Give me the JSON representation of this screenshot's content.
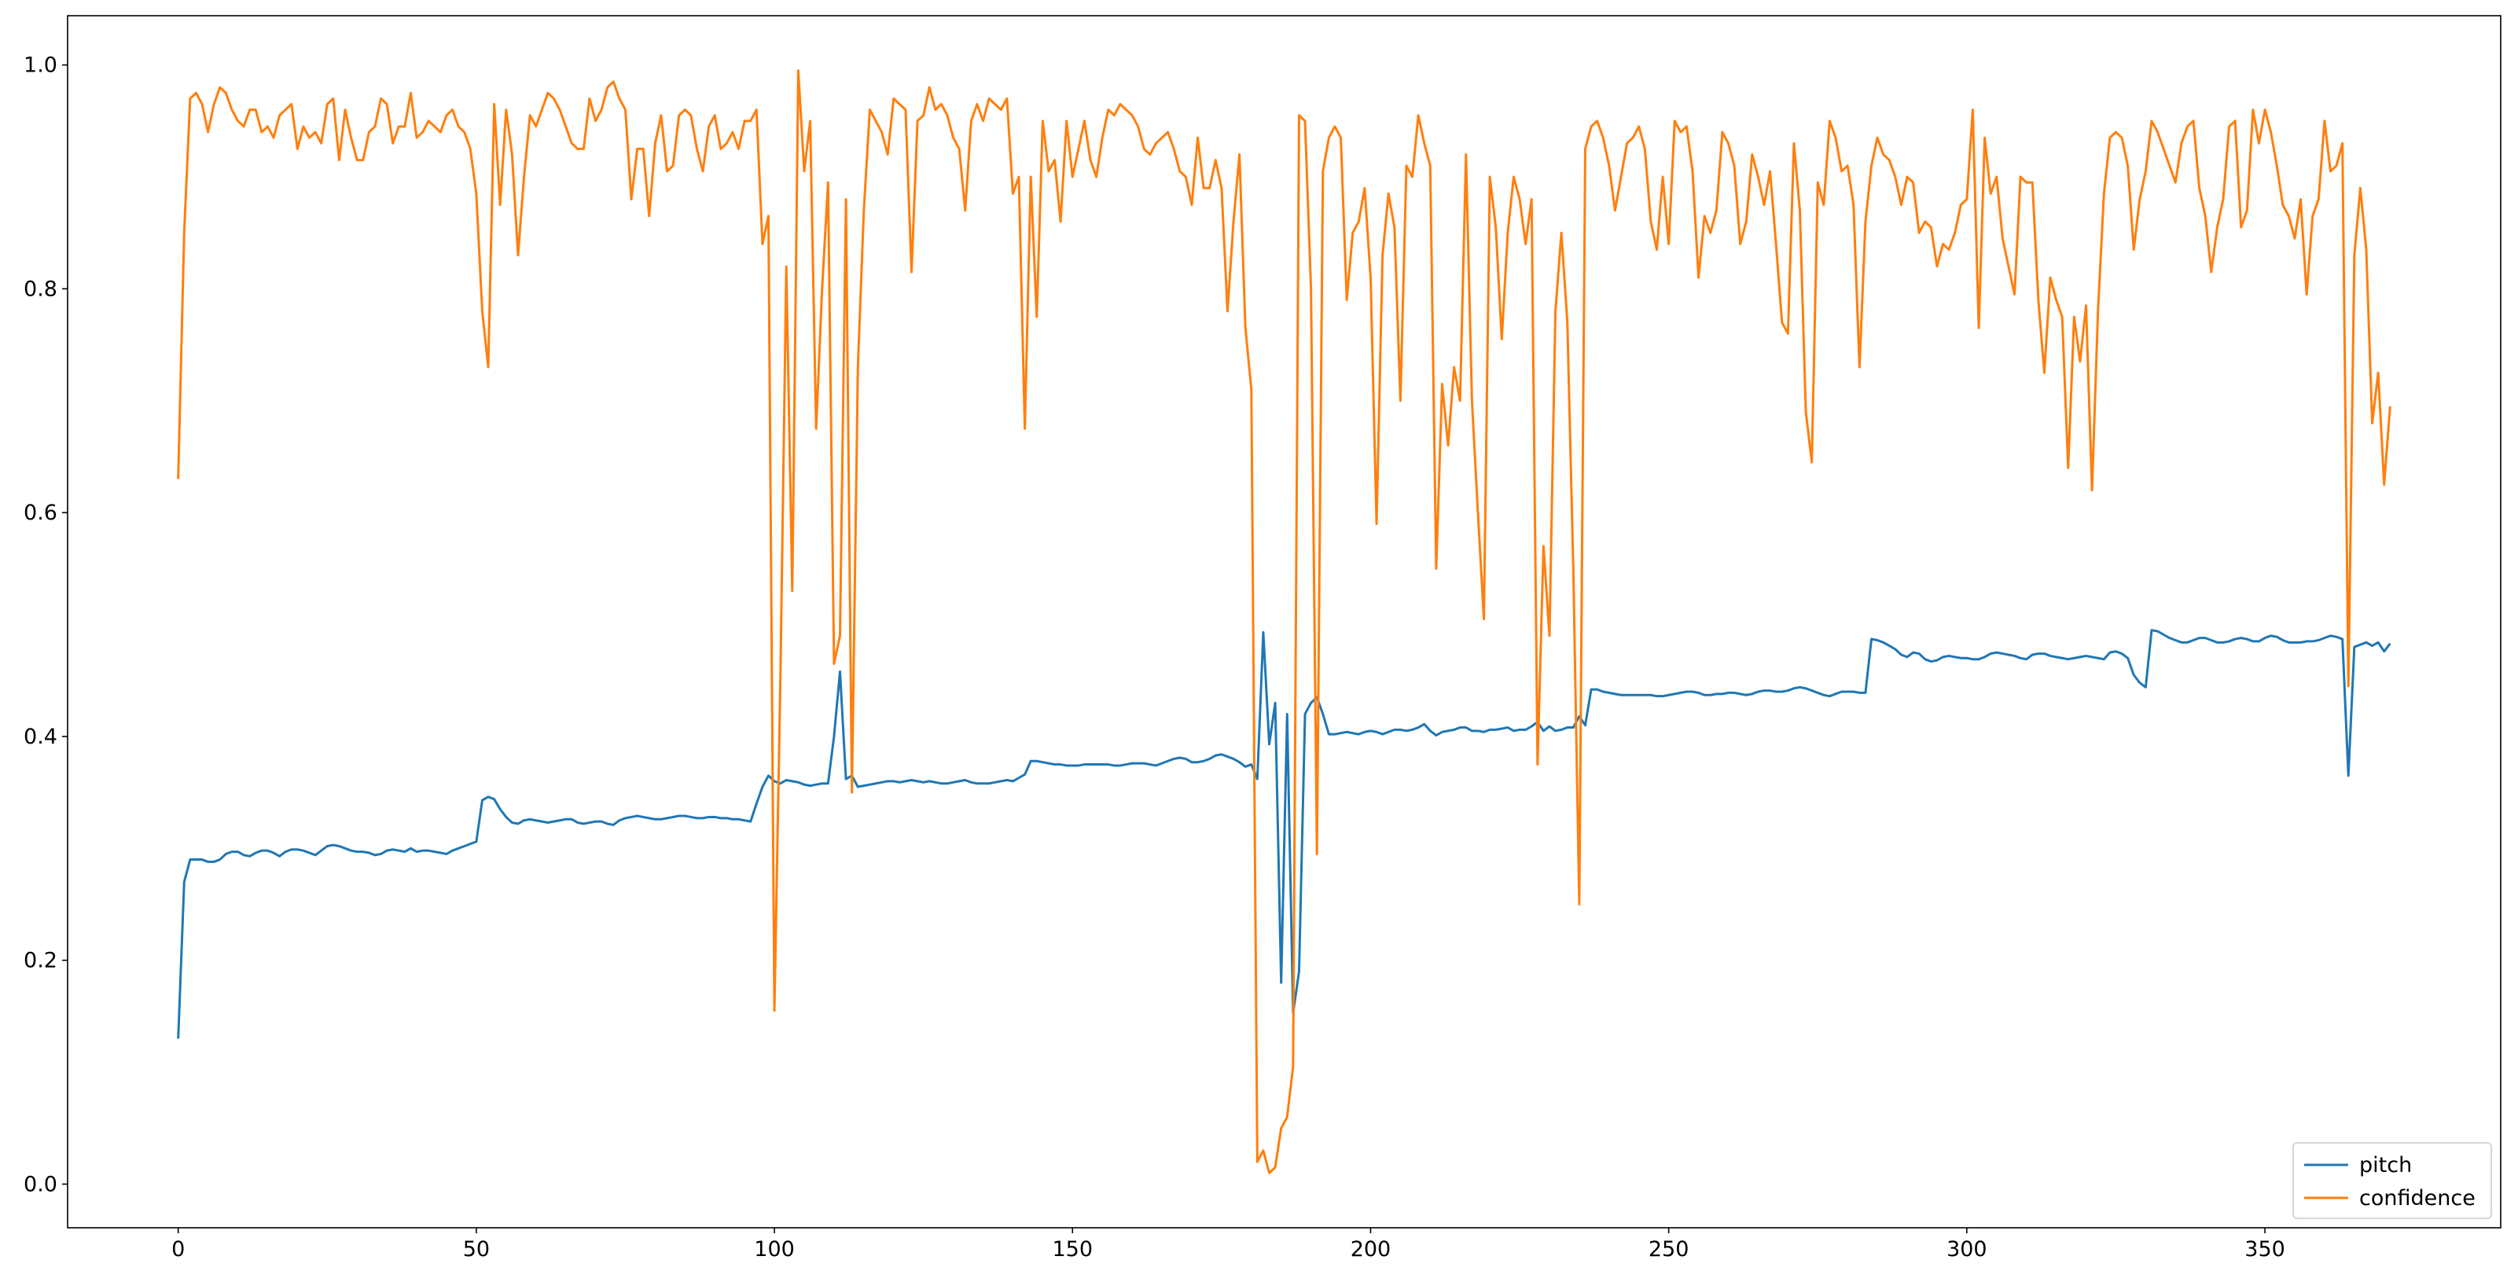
{
  "chart_data": {
    "type": "line",
    "x": [
      0,
      1,
      2,
      3,
      4,
      5,
      6,
      7,
      8,
      9,
      10,
      11,
      12,
      13,
      14,
      15,
      16,
      17,
      18,
      19,
      20,
      21,
      22,
      23,
      24,
      25,
      26,
      27,
      28,
      29,
      30,
      31,
      32,
      33,
      34,
      35,
      36,
      37,
      38,
      39,
      40,
      41,
      42,
      43,
      44,
      45,
      46,
      47,
      48,
      49,
      50,
      51,
      52,
      53,
      54,
      55,
      56,
      57,
      58,
      59,
      60,
      61,
      62,
      63,
      64,
      65,
      66,
      67,
      68,
      69,
      70,
      71,
      72,
      73,
      74,
      75,
      76,
      77,
      78,
      79,
      80,
      81,
      82,
      83,
      84,
      85,
      86,
      87,
      88,
      89,
      90,
      91,
      92,
      93,
      94,
      95,
      96,
      97,
      98,
      99,
      100,
      101,
      102,
      103,
      104,
      105,
      106,
      107,
      108,
      109,
      110,
      111,
      112,
      113,
      114,
      115,
      116,
      117,
      118,
      119,
      120,
      121,
      122,
      123,
      124,
      125,
      126,
      127,
      128,
      129,
      130,
      131,
      132,
      133,
      134,
      135,
      136,
      137,
      138,
      139,
      140,
      141,
      142,
      143,
      144,
      145,
      146,
      147,
      148,
      149,
      150,
      151,
      152,
      153,
      154,
      155,
      156,
      157,
      158,
      159,
      160,
      161,
      162,
      163,
      164,
      165,
      166,
      167,
      168,
      169,
      170,
      171,
      172,
      173,
      174,
      175,
      176,
      177,
      178,
      179,
      180,
      181,
      182,
      183,
      184,
      185,
      186,
      187,
      188,
      189,
      190,
      191,
      192,
      193,
      194,
      195,
      196,
      197,
      198,
      199,
      200,
      201,
      202,
      203,
      204,
      205,
      206,
      207,
      208,
      209,
      210,
      211,
      212,
      213,
      214,
      215,
      216,
      217,
      218,
      219,
      220,
      221,
      222,
      223,
      224,
      225,
      226,
      227,
      228,
      229,
      230,
      231,
      232,
      233,
      234,
      235,
      236,
      237,
      238,
      239,
      240,
      241,
      242,
      243,
      244,
      245,
      246,
      247,
      248,
      249,
      250,
      251,
      252,
      253,
      254,
      255,
      256,
      257,
      258,
      259,
      260,
      261,
      262,
      263,
      264,
      265,
      266,
      267,
      268,
      269,
      270,
      271,
      272,
      273,
      274,
      275,
      276,
      277,
      278,
      279,
      280,
      281,
      282,
      283,
      284,
      285,
      286,
      287,
      288,
      289,
      290,
      291,
      292,
      293,
      294,
      295,
      296,
      297,
      298,
      299,
      300,
      301,
      302,
      303,
      304,
      305,
      306,
      307,
      308,
      309,
      310,
      311,
      312,
      313,
      314,
      315,
      316,
      317,
      318,
      319,
      320,
      321,
      322,
      323,
      324,
      325,
      326,
      327,
      328,
      329,
      330,
      331,
      332,
      333,
      334,
      335,
      336,
      337,
      338,
      339,
      340,
      341,
      342,
      343,
      344,
      345,
      346,
      347,
      348,
      349,
      350,
      351,
      352,
      353,
      354,
      355,
      356,
      357,
      358,
      359,
      360,
      361,
      362,
      363,
      364,
      365,
      366,
      367,
      368,
      369,
      370,
      371
    ],
    "series": [
      {
        "name": "pitch",
        "color": "#1f77b4",
        "values": [
          0.13,
          0.27,
          0.29,
          0.29,
          0.29,
          0.288,
          0.288,
          0.29,
          0.295,
          0.297,
          0.297,
          0.294,
          0.293,
          0.296,
          0.298,
          0.298,
          0.296,
          0.293,
          0.297,
          0.299,
          0.299,
          0.298,
          0.296,
          0.294,
          0.298,
          0.302,
          0.303,
          0.302,
          0.3,
          0.298,
          0.297,
          0.297,
          0.296,
          0.294,
          0.295,
          0.298,
          0.299,
          0.298,
          0.297,
          0.3,
          0.297,
          0.298,
          0.298,
          0.297,
          0.296,
          0.295,
          0.298,
          0.3,
          0.302,
          0.304,
          0.306,
          0.343,
          0.346,
          0.344,
          0.335,
          0.328,
          0.323,
          0.322,
          0.325,
          0.326,
          0.325,
          0.324,
          0.323,
          0.324,
          0.325,
          0.326,
          0.326,
          0.323,
          0.322,
          0.323,
          0.324,
          0.324,
          0.322,
          0.321,
          0.325,
          0.327,
          0.328,
          0.329,
          0.328,
          0.327,
          0.326,
          0.326,
          0.327,
          0.328,
          0.329,
          0.329,
          0.328,
          0.327,
          0.327,
          0.328,
          0.328,
          0.327,
          0.327,
          0.326,
          0.326,
          0.325,
          0.324,
          0.34,
          0.355,
          0.365,
          0.36,
          0.358,
          0.361,
          0.36,
          0.359,
          0.357,
          0.356,
          0.357,
          0.358,
          0.358,
          0.4,
          0.458,
          0.362,
          0.365,
          0.355,
          0.356,
          0.357,
          0.358,
          0.359,
          0.36,
          0.36,
          0.359,
          0.36,
          0.361,
          0.36,
          0.359,
          0.36,
          0.359,
          0.358,
          0.358,
          0.359,
          0.36,
          0.361,
          0.359,
          0.358,
          0.358,
          0.358,
          0.359,
          0.36,
          0.361,
          0.36,
          0.363,
          0.366,
          0.378,
          0.378,
          0.377,
          0.376,
          0.375,
          0.375,
          0.374,
          0.374,
          0.374,
          0.375,
          0.375,
          0.375,
          0.375,
          0.375,
          0.374,
          0.374,
          0.375,
          0.376,
          0.376,
          0.376,
          0.375,
          0.374,
          0.376,
          0.378,
          0.38,
          0.381,
          0.38,
          0.377,
          0.377,
          0.378,
          0.38,
          0.383,
          0.384,
          0.382,
          0.38,
          0.377,
          0.373,
          0.375,
          0.362,
          0.493,
          0.393,
          0.43,
          0.18,
          0.42,
          0.153,
          0.19,
          0.42,
          0.43,
          0.435,
          0.42,
          0.402,
          0.402,
          0.403,
          0.404,
          0.403,
          0.402,
          0.404,
          0.405,
          0.404,
          0.402,
          0.404,
          0.406,
          0.406,
          0.405,
          0.406,
          0.408,
          0.411,
          0.405,
          0.401,
          0.404,
          0.405,
          0.406,
          0.408,
          0.408,
          0.405,
          0.405,
          0.404,
          0.406,
          0.406,
          0.407,
          0.408,
          0.405,
          0.406,
          0.406,
          0.409,
          0.413,
          0.405,
          0.409,
          0.405,
          0.406,
          0.408,
          0.408,
          0.418,
          0.41,
          0.442,
          0.442,
          0.44,
          0.439,
          0.438,
          0.437,
          0.437,
          0.437,
          0.437,
          0.437,
          0.437,
          0.436,
          0.436,
          0.437,
          0.438,
          0.439,
          0.44,
          0.44,
          0.439,
          0.437,
          0.437,
          0.438,
          0.438,
          0.439,
          0.439,
          0.438,
          0.437,
          0.438,
          0.44,
          0.441,
          0.441,
          0.44,
          0.44,
          0.441,
          0.443,
          0.444,
          0.443,
          0.441,
          0.439,
          0.437,
          0.436,
          0.438,
          0.44,
          0.44,
          0.44,
          0.439,
          0.439,
          0.487,
          0.486,
          0.484,
          0.481,
          0.478,
          0.473,
          0.471,
          0.475,
          0.474,
          0.469,
          0.467,
          0.468,
          0.471,
          0.472,
          0.471,
          0.47,
          0.47,
          0.469,
          0.469,
          0.471,
          0.474,
          0.475,
          0.474,
          0.473,
          0.472,
          0.47,
          0.469,
          0.473,
          0.474,
          0.474,
          0.472,
          0.471,
          0.47,
          0.469,
          0.47,
          0.471,
          0.472,
          0.471,
          0.47,
          0.469,
          0.475,
          0.476,
          0.474,
          0.47,
          0.455,
          0.448,
          0.444,
          0.495,
          0.494,
          0.491,
          0.488,
          0.486,
          0.484,
          0.484,
          0.486,
          0.488,
          0.488,
          0.486,
          0.484,
          0.484,
          0.485,
          0.487,
          0.488,
          0.487,
          0.485,
          0.485,
          0.488,
          0.49,
          0.489,
          0.486,
          0.484,
          0.484,
          0.484,
          0.485,
          0.485,
          0.486,
          0.488,
          0.49,
          0.489,
          0.487,
          0.365,
          0.48,
          0.482,
          0.484,
          0.481,
          0.484,
          0.476,
          0.483
        ]
      },
      {
        "name": "confidence",
        "color": "#ff7f0e",
        "values": [
          0.63,
          0.85,
          0.97,
          0.975,
          0.965,
          0.94,
          0.965,
          0.98,
          0.975,
          0.96,
          0.95,
          0.945,
          0.96,
          0.96,
          0.94,
          0.945,
          0.935,
          0.955,
          0.96,
          0.965,
          0.925,
          0.945,
          0.935,
          0.94,
          0.93,
          0.965,
          0.97,
          0.915,
          0.96,
          0.935,
          0.915,
          0.915,
          0.94,
          0.945,
          0.97,
          0.965,
          0.93,
          0.945,
          0.945,
          0.975,
          0.935,
          0.94,
          0.95,
          0.945,
          0.94,
          0.955,
          0.96,
          0.945,
          0.94,
          0.925,
          0.885,
          0.78,
          0.73,
          0.965,
          0.875,
          0.96,
          0.92,
          0.83,
          0.9,
          0.955,
          0.945,
          0.96,
          0.975,
          0.97,
          0.96,
          0.945,
          0.93,
          0.925,
          0.925,
          0.97,
          0.95,
          0.96,
          0.98,
          0.985,
          0.97,
          0.96,
          0.88,
          0.925,
          0.925,
          0.865,
          0.93,
          0.955,
          0.905,
          0.91,
          0.955,
          0.96,
          0.955,
          0.925,
          0.905,
          0.945,
          0.955,
          0.925,
          0.93,
          0.94,
          0.925,
          0.95,
          0.95,
          0.96,
          0.84,
          0.865,
          0.155,
          0.45,
          0.82,
          0.53,
          0.995,
          0.905,
          0.95,
          0.675,
          0.8,
          0.895,
          0.465,
          0.49,
          0.88,
          0.35,
          0.73,
          0.87,
          0.96,
          0.95,
          0.94,
          0.92,
          0.97,
          0.965,
          0.96,
          0.815,
          0.95,
          0.955,
          0.98,
          0.96,
          0.965,
          0.955,
          0.935,
          0.925,
          0.87,
          0.95,
          0.965,
          0.95,
          0.97,
          0.965,
          0.96,
          0.97,
          0.885,
          0.9,
          0.675,
          0.9,
          0.775,
          0.95,
          0.905,
          0.915,
          0.86,
          0.95,
          0.9,
          0.925,
          0.95,
          0.915,
          0.9,
          0.935,
          0.96,
          0.955,
          0.965,
          0.96,
          0.955,
          0.945,
          0.925,
          0.92,
          0.93,
          0.935,
          0.94,
          0.925,
          0.905,
          0.9,
          0.875,
          0.935,
          0.89,
          0.89,
          0.915,
          0.89,
          0.78,
          0.86,
          0.92,
          0.765,
          0.71,
          0.02,
          0.03,
          0.01,
          0.015,
          0.05,
          0.06,
          0.105,
          0.955,
          0.95,
          0.8,
          0.295,
          0.905,
          0.935,
          0.945,
          0.935,
          0.79,
          0.85,
          0.86,
          0.89,
          0.81,
          0.59,
          0.83,
          0.885,
          0.855,
          0.7,
          0.91,
          0.9,
          0.955,
          0.93,
          0.91,
          0.55,
          0.715,
          0.66,
          0.73,
          0.7,
          0.92,
          0.7,
          0.6,
          0.505,
          0.9,
          0.855,
          0.755,
          0.85,
          0.9,
          0.88,
          0.84,
          0.88,
          0.375,
          0.57,
          0.49,
          0.78,
          0.85,
          0.77,
          0.55,
          0.25,
          0.925,
          0.945,
          0.95,
          0.935,
          0.91,
          0.87,
          0.9,
          0.93,
          0.935,
          0.945,
          0.925,
          0.86,
          0.835,
          0.9,
          0.84,
          0.95,
          0.94,
          0.945,
          0.905,
          0.81,
          0.865,
          0.85,
          0.87,
          0.94,
          0.93,
          0.91,
          0.84,
          0.86,
          0.92,
          0.9,
          0.875,
          0.905,
          0.84,
          0.77,
          0.76,
          0.93,
          0.87,
          0.69,
          0.645,
          0.895,
          0.875,
          0.95,
          0.935,
          0.905,
          0.91,
          0.875,
          0.73,
          0.86,
          0.91,
          0.935,
          0.92,
          0.915,
          0.9,
          0.875,
          0.9,
          0.895,
          0.85,
          0.86,
          0.855,
          0.82,
          0.84,
          0.835,
          0.85,
          0.875,
          0.88,
          0.96,
          0.765,
          0.935,
          0.885,
          0.9,
          0.845,
          0.82,
          0.795,
          0.9,
          0.895,
          0.895,
          0.79,
          0.725,
          0.81,
          0.79,
          0.775,
          0.64,
          0.775,
          0.735,
          0.785,
          0.62,
          0.78,
          0.885,
          0.935,
          0.94,
          0.935,
          0.91,
          0.835,
          0.88,
          0.905,
          0.95,
          0.94,
          0.925,
          0.91,
          0.895,
          0.93,
          0.945,
          0.95,
          0.89,
          0.865,
          0.815,
          0.855,
          0.88,
          0.945,
          0.95,
          0.855,
          0.87,
          0.96,
          0.93,
          0.96,
          0.94,
          0.91,
          0.875,
          0.865,
          0.845,
          0.88,
          0.795,
          0.865,
          0.88,
          0.95,
          0.905,
          0.91,
          0.93,
          0.445,
          0.83,
          0.89,
          0.835,
          0.68,
          0.725,
          0.625,
          0.695
        ]
      }
    ],
    "xlim": [
      -18.55,
      389.55
    ],
    "ylim": [
      -0.039,
      1.044
    ],
    "xticks": [
      0,
      50,
      100,
      150,
      200,
      250,
      300,
      350
    ],
    "yticks": [
      {
        "value": 0,
        "label": "0.0"
      },
      0.2,
      0.4,
      0.6,
      0.8,
      {
        "value": 1,
        "label": "1.0"
      }
    ],
    "legend": "lower right"
  }
}
